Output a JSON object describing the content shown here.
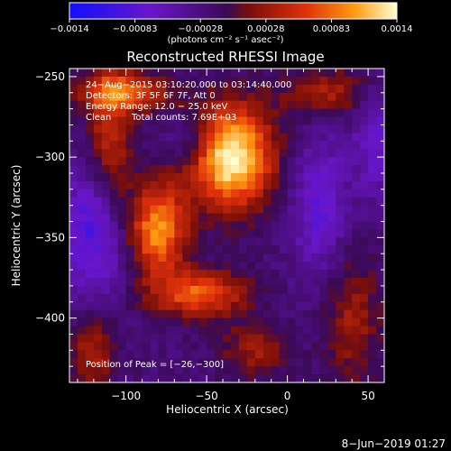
{
  "chart_data": {
    "type": "heatmap",
    "title": "Reconstructed RHESSI Image",
    "xlabel": "Heliocentric X (arcsec)",
    "ylabel": "Heliocentric Y (arcsec)",
    "xlim": [
      -135,
      60
    ],
    "ylim": [
      -440,
      -245
    ],
    "x_ticks": [
      -100,
      -50,
      0,
      50
    ],
    "x_tick_labels": [
      "−100",
      "−50",
      "0",
      "50"
    ],
    "y_ticks": [
      -250,
      -300,
      -350,
      -400
    ],
    "y_tick_labels": [
      "−250",
      "−300",
      "−350",
      "−400"
    ],
    "colorbar": {
      "range": [
        -0.0014,
        0.0014
      ],
      "tick_labels": [
        "−0.0014",
        "−0.00083",
        "−0.00028",
        "0.00028",
        "0.00083",
        "0.0014"
      ],
      "unit_label": "(photons cm⁻² s⁻¹ asec⁻²)",
      "colors": [
        "#1010ff",
        "#6a16c8",
        "#3a0a55",
        "#7a0f0a",
        "#e0300a",
        "#ff9a10",
        "#ffffd0"
      ]
    },
    "annotations": [
      "24−Aug−2015 03:10:20.000 to 03:14:40.000",
      "Detectors: 3F 5F 6F 7F, Att 0",
      "Energy Range: 12.0 − 25.0 keV",
      "Clean",
      "Total counts: 7.69E+03"
    ],
    "peak_label": "Position of Peak = [−26,−300]",
    "peak": [
      -26,
      -300
    ],
    "sources": [
      {
        "x": -35,
        "y": -300,
        "sx": 18,
        "sy": 22,
        "amp": 1.0
      },
      {
        "x": -80,
        "y": -345,
        "sx": 12,
        "sy": 20,
        "amp": 0.75
      },
      {
        "x": -55,
        "y": -385,
        "sx": 20,
        "sy": 10,
        "amp": 0.6
      },
      {
        "x": -110,
        "y": -290,
        "sx": 10,
        "sy": 35,
        "amp": 0.45
      },
      {
        "x": -100,
        "y": -260,
        "sx": 20,
        "sy": 8,
        "amp": 0.55
      },
      {
        "x": -120,
        "y": -420,
        "sx": 10,
        "sy": 18,
        "amp": 0.35
      },
      {
        "x": 40,
        "y": -400,
        "sx": 12,
        "sy": 30,
        "amp": 0.3
      },
      {
        "x": 25,
        "y": -260,
        "sx": 20,
        "sy": 10,
        "amp": 0.35
      },
      {
        "x": -20,
        "y": -420,
        "sx": 15,
        "sy": 12,
        "amp": 0.3
      }
    ],
    "negative_regions": [
      {
        "x": -120,
        "y": -345,
        "sx": 14,
        "sy": 30,
        "amp": 0.8
      },
      {
        "x": 20,
        "y": -330,
        "sx": 12,
        "sy": 30,
        "amp": 0.6
      },
      {
        "x": 55,
        "y": -290,
        "sx": 10,
        "sy": 25,
        "amp": 0.5
      },
      {
        "x": -60,
        "y": -290,
        "sx": 10,
        "sy": 12,
        "amp": 0.45
      }
    ]
  },
  "timestamp": "8−Jun−2019 01:27"
}
